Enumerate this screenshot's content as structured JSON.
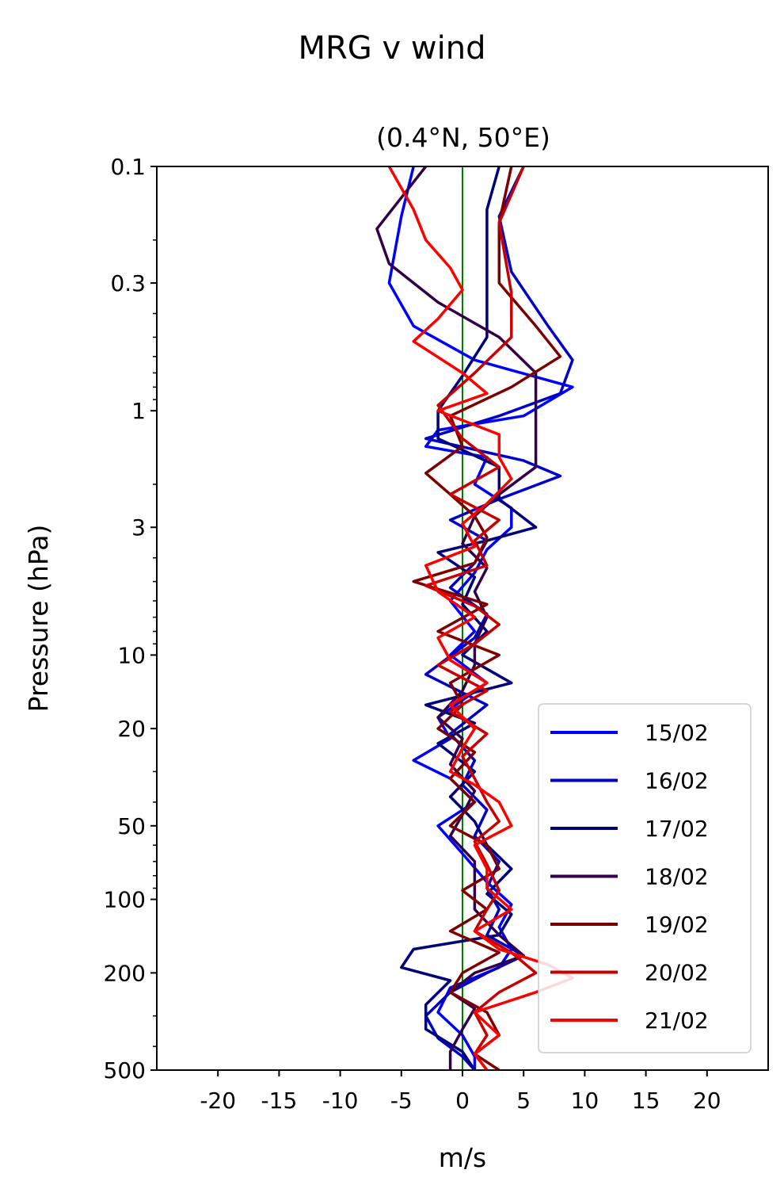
{
  "chart_data": {
    "type": "line",
    "title": "MRG v wind",
    "subtitle": "(0.4°N, 50°E)",
    "xlabel": "m/s",
    "ylabel": "Pressure (hPa)",
    "xlim": [
      -25,
      25
    ],
    "ylim": [
      500,
      0.1
    ],
    "yscale": "log",
    "x_ticks": [
      -20,
      -15,
      -10,
      -5,
      0,
      5,
      10,
      15,
      20
    ],
    "x_tick_labels": [
      "-20",
      "-15",
      "-10",
      "-5",
      "0",
      "5",
      "10",
      "15",
      "20"
    ],
    "y_ticks": [
      0.1,
      0.3,
      1,
      3,
      10,
      20,
      50,
      100,
      200,
      500
    ],
    "y_tick_labels": [
      "0.1",
      "0.3",
      "1",
      "3",
      "10",
      "20",
      "50",
      "100",
      "200",
      "500"
    ],
    "zero_line_color": "#008000",
    "grid": false,
    "legend_position": "lower-right",
    "series": [
      {
        "name": "15/02",
        "color": "#0000ff",
        "points": [
          [
            -4,
            0.1
          ],
          [
            -5,
            0.16
          ],
          [
            -6,
            0.3
          ],
          [
            -4,
            0.45
          ],
          [
            1,
            0.62
          ],
          [
            9,
            0.8
          ],
          [
            5,
            1.05
          ],
          [
            -2,
            1.2
          ],
          [
            -3,
            1.4
          ],
          [
            2,
            1.55
          ],
          [
            1,
            2
          ],
          [
            4,
            2.5
          ],
          [
            4,
            3
          ],
          [
            2,
            3.7
          ],
          [
            1,
            4.6
          ],
          [
            -1,
            6
          ],
          [
            1,
            8
          ],
          [
            -1,
            10
          ],
          [
            2,
            13
          ],
          [
            -2,
            18
          ],
          [
            -1,
            22
          ],
          [
            -4,
            27
          ],
          [
            -1,
            32
          ],
          [
            1,
            40
          ],
          [
            -2,
            50
          ],
          [
            0,
            65
          ],
          [
            2,
            85
          ],
          [
            4,
            105
          ],
          [
            3,
            130
          ],
          [
            4,
            160
          ],
          [
            3,
            190
          ],
          [
            -1,
            230
          ],
          [
            -2,
            290
          ],
          [
            0,
            360
          ],
          [
            1,
            440
          ],
          [
            1,
            500
          ]
        ]
      },
      {
        "name": "16/02",
        "color": "#0000c8",
        "points": [
          [
            5,
            0.1
          ],
          [
            3,
            0.16
          ],
          [
            4,
            0.27
          ],
          [
            7,
            0.45
          ],
          [
            9,
            0.62
          ],
          [
            8,
            0.85
          ],
          [
            3,
            1.05
          ],
          [
            -3,
            1.3
          ],
          [
            5,
            1.6
          ],
          [
            8,
            1.85
          ],
          [
            3,
            2.3
          ],
          [
            -1,
            2.8
          ],
          [
            2,
            3.4
          ],
          [
            1,
            4.2
          ],
          [
            -1,
            5.3
          ],
          [
            2,
            6.8
          ],
          [
            1,
            8.5
          ],
          [
            -3,
            12
          ],
          [
            2,
            16
          ],
          [
            -1,
            21
          ],
          [
            1,
            27
          ],
          [
            0,
            34
          ],
          [
            2,
            43
          ],
          [
            1,
            55
          ],
          [
            3,
            70
          ],
          [
            2,
            90
          ],
          [
            3,
            110
          ],
          [
            2,
            140
          ],
          [
            5,
            170
          ],
          [
            2,
            200
          ],
          [
            -1,
            240
          ],
          [
            -3,
            300
          ],
          [
            -2,
            370
          ],
          [
            0,
            440
          ],
          [
            1,
            500
          ]
        ]
      },
      {
        "name": "17/02",
        "color": "#00007d",
        "points": [
          [
            3,
            0.1
          ],
          [
            2,
            0.15
          ],
          [
            2,
            0.3
          ],
          [
            2,
            0.5
          ],
          [
            0,
            0.72
          ],
          [
            -2,
            1.0
          ],
          [
            -2,
            1.3
          ],
          [
            3,
            1.7
          ],
          [
            3,
            2.3
          ],
          [
            6,
            3
          ],
          [
            2,
            3.4
          ],
          [
            -2,
            3.8
          ],
          [
            1,
            4.8
          ],
          [
            0,
            6.2
          ],
          [
            2,
            8
          ],
          [
            0,
            10
          ],
          [
            4,
            13
          ],
          [
            -3,
            16
          ],
          [
            1,
            19
          ],
          [
            -2,
            23
          ],
          [
            1,
            30
          ],
          [
            -1,
            38
          ],
          [
            1,
            48
          ],
          [
            2,
            60
          ],
          [
            4,
            75
          ],
          [
            2,
            95
          ],
          [
            4,
            115
          ],
          [
            3,
            140
          ],
          [
            -4,
            160
          ],
          [
            -5,
            190
          ],
          [
            -1,
            215
          ],
          [
            -3,
            270
          ],
          [
            -3,
            340
          ],
          [
            0,
            420
          ],
          [
            1,
            500
          ]
        ]
      },
      {
        "name": "18/02",
        "color": "#32004b",
        "points": [
          [
            -3,
            0.1
          ],
          [
            -7,
            0.18
          ],
          [
            -6,
            0.25
          ],
          [
            -2,
            0.36
          ],
          [
            3,
            0.5
          ],
          [
            6,
            0.7
          ],
          [
            6,
            1.0
          ],
          [
            6,
            1.3
          ],
          [
            6,
            1.7
          ],
          [
            3,
            2.2
          ],
          [
            1,
            2.7
          ],
          [
            0,
            3.5
          ],
          [
            2,
            4.4
          ],
          [
            1,
            5.5
          ],
          [
            2,
            7
          ],
          [
            1,
            9
          ],
          [
            1,
            11
          ],
          [
            0,
            14
          ],
          [
            -2,
            18
          ],
          [
            0,
            22
          ],
          [
            -1,
            28
          ],
          [
            1,
            36
          ],
          [
            0,
            45
          ],
          [
            -1,
            55
          ],
          [
            1,
            70
          ],
          [
            1,
            88
          ],
          [
            1,
            110
          ],
          [
            3,
            140
          ],
          [
            5,
            170
          ],
          [
            1,
            200
          ],
          [
            -1,
            240
          ],
          [
            1,
            280
          ],
          [
            0,
            340
          ],
          [
            -1,
            420
          ],
          [
            -1,
            500
          ]
        ]
      },
      {
        "name": "19/02",
        "color": "#7d0000",
        "points": [
          [
            4,
            0.1
          ],
          [
            3,
            0.17
          ],
          [
            3,
            0.3
          ],
          [
            6,
            0.45
          ],
          [
            8,
            0.6
          ],
          [
            4,
            0.8
          ],
          [
            -1,
            1.05
          ],
          [
            0,
            1.4
          ],
          [
            -3,
            1.8
          ],
          [
            -1,
            2.2
          ],
          [
            1,
            2.7
          ],
          [
            2,
            3.3
          ],
          [
            1,
            4.2
          ],
          [
            -4,
            5
          ],
          [
            2,
            6.2
          ],
          [
            -2,
            8
          ],
          [
            3,
            10
          ],
          [
            -1,
            13
          ],
          [
            0,
            16
          ],
          [
            -2,
            20
          ],
          [
            1,
            25
          ],
          [
            -1,
            32
          ],
          [
            1,
            40
          ],
          [
            -1,
            50
          ],
          [
            2,
            60
          ],
          [
            3,
            75
          ],
          [
            0,
            92
          ],
          [
            2,
            110
          ],
          [
            -1,
            135
          ],
          [
            3,
            165
          ],
          [
            0,
            200
          ],
          [
            -1,
            240
          ],
          [
            2,
            290
          ],
          [
            3,
            360
          ],
          [
            1,
            430
          ],
          [
            3,
            500
          ]
        ]
      },
      {
        "name": "20/02",
        "color": "#c80000",
        "points": [
          [
            5,
            0.1
          ],
          [
            3,
            0.17
          ],
          [
            4,
            0.33
          ],
          [
            4,
            0.5
          ],
          [
            1,
            0.7
          ],
          [
            -2,
            0.95
          ],
          [
            0,
            1.3
          ],
          [
            3,
            1.7
          ],
          [
            -1,
            2.2
          ],
          [
            3,
            2.8
          ],
          [
            1,
            3.4
          ],
          [
            2,
            4.3
          ],
          [
            -3,
            5.2
          ],
          [
            1,
            6.3
          ],
          [
            3,
            7.5
          ],
          [
            1,
            9
          ],
          [
            -2,
            11
          ],
          [
            2,
            14
          ],
          [
            -1,
            17
          ],
          [
            2,
            21
          ],
          [
            0,
            26
          ],
          [
            1,
            32
          ],
          [
            2,
            40
          ],
          [
            3,
            48
          ],
          [
            1,
            58
          ],
          [
            2,
            72
          ],
          [
            3,
            92
          ],
          [
            2,
            110
          ],
          [
            1,
            135
          ],
          [
            4,
            165
          ],
          [
            6,
            200
          ],
          [
            3,
            240
          ],
          [
            1,
            290
          ],
          [
            2,
            360
          ],
          [
            1,
            430
          ],
          [
            2,
            500
          ]
        ]
      },
      {
        "name": "21/02",
        "color": "#ff0000",
        "points": [
          [
            -6,
            0.1
          ],
          [
            -4,
            0.15
          ],
          [
            -3,
            0.2
          ],
          [
            -1,
            0.26
          ],
          [
            0,
            0.32
          ],
          [
            -2,
            0.42
          ],
          [
            -4,
            0.52
          ],
          [
            0,
            0.7
          ],
          [
            2,
            0.85
          ],
          [
            -2,
            1.0
          ],
          [
            3,
            1.25
          ],
          [
            3,
            1.55
          ],
          [
            4,
            1.9
          ],
          [
            2,
            2.4
          ],
          [
            0,
            2.9
          ],
          [
            1,
            3.6
          ],
          [
            -3,
            4.3
          ],
          [
            -2,
            5.5
          ],
          [
            1,
            7
          ],
          [
            -2,
            8.5
          ],
          [
            -1,
            10.5
          ],
          [
            2,
            13
          ],
          [
            -1,
            16
          ],
          [
            1,
            20
          ],
          [
            0,
            24
          ],
          [
            -1,
            30
          ],
          [
            1,
            34
          ],
          [
            3,
            40
          ],
          [
            4,
            50
          ],
          [
            1,
            60
          ],
          [
            2,
            75
          ],
          [
            2,
            90
          ],
          [
            4,
            110
          ],
          [
            1,
            135
          ],
          [
            3,
            160
          ],
          [
            7,
            185
          ],
          [
            9,
            210
          ],
          [
            6,
            240
          ],
          [
            1,
            290
          ],
          [
            3,
            360
          ],
          [
            1,
            430
          ],
          [
            2,
            500
          ]
        ]
      }
    ]
  }
}
